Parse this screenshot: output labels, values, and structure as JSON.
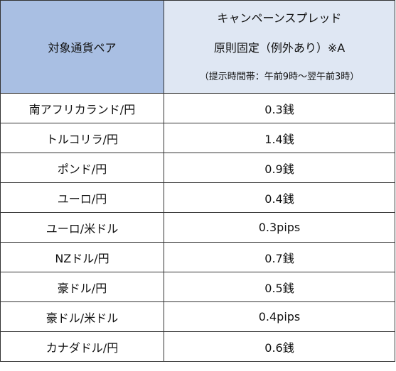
{
  "header": {
    "pair_label": "対象通貨ペア",
    "spread_line1": "キャンペーンスプレッド",
    "spread_line2": "原則固定（例外あり）※A",
    "spread_line3": "（提示時間帯：午前9時～翌午前3時）"
  },
  "rows": [
    {
      "pair": "南アフリカランド/円",
      "spread": "0.3銭"
    },
    {
      "pair": "トルコリラ/円",
      "spread": "1.4銭"
    },
    {
      "pair": "ポンド/円",
      "spread": "0.9銭"
    },
    {
      "pair": "ユーロ/円",
      "spread": "0.4銭"
    },
    {
      "pair": "ユーロ/米ドル",
      "spread": "0.3pips"
    },
    {
      "pair": "NZドル/円",
      "spread": "0.7銭"
    },
    {
      "pair": "豪ドル/円",
      "spread": "0.5銭"
    },
    {
      "pair": "豪ドル/米ドル",
      "spread": "0.4pips"
    },
    {
      "pair": "カナダドル/円",
      "spread": "0.6銭"
    }
  ],
  "colors": {
    "header_pair_bg": "#a9bfe3",
    "header_spread_bg": "#dfe7f3",
    "border": "#333333"
  }
}
